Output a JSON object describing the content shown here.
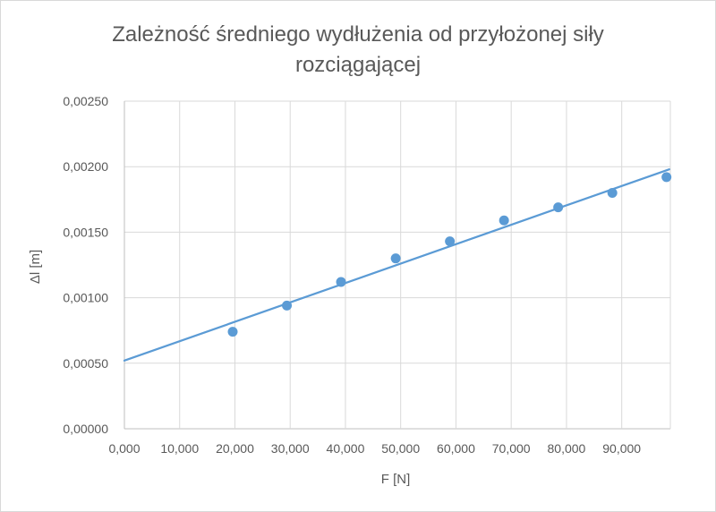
{
  "chart_data": {
    "type": "scatter",
    "title_lines": [
      "Zależność średniego wydłużenia od przyłożonej siły",
      "rozciągającej"
    ],
    "xlabel": "F [N]",
    "ylabel": "Δl [m]",
    "xlim": [
      0,
      98.8
    ],
    "ylim": [
      0,
      0.0025
    ],
    "x_ticks": [
      0,
      10,
      20,
      30,
      40,
      50,
      60,
      70,
      80,
      90
    ],
    "x_tick_labels": [
      "0,000",
      "10,000",
      "20,000",
      "30,000",
      "40,000",
      "50,000",
      "60,000",
      "70,000",
      "80,000",
      "90,000"
    ],
    "y_ticks": [
      0,
      0.0005,
      0.001,
      0.0015,
      0.002,
      0.0025
    ],
    "y_tick_labels": [
      "0,00000",
      "0,00050",
      "0,00100",
      "0,00150",
      "0,00200",
      "0,00250"
    ],
    "grid": true,
    "series": [
      {
        "x": [
          19.6,
          29.4,
          39.2,
          49.1,
          58.9,
          68.7,
          78.5,
          88.3,
          98.1
        ],
        "y": [
          0.00074,
          0.00094,
          0.00112,
          0.0013,
          0.00143,
          0.00159,
          0.00169,
          0.0018,
          0.00192
        ],
        "color": "#5b9bd5"
      }
    ],
    "trendline": {
      "type": "linear",
      "x": [
        0,
        98.6
      ],
      "y": [
        0.00052,
        0.00198
      ],
      "color": "#5b9bd5"
    }
  }
}
